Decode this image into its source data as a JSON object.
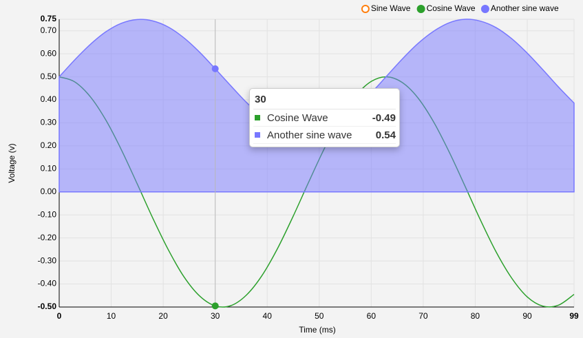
{
  "chart_data": {
    "type": "line",
    "xlabel": "Time (ms)",
    "ylabel": "Voltage (v)",
    "x": [
      0,
      3,
      6,
      9,
      12,
      15,
      18,
      21,
      24,
      27,
      30,
      33,
      36,
      39,
      42,
      45,
      48,
      51,
      54,
      57,
      60,
      63,
      66,
      69,
      72,
      75,
      78,
      81,
      84,
      87,
      90,
      93,
      96,
      99
    ],
    "series": [
      {
        "name": "Sine Wave",
        "color": "#ff7f0e",
        "disabled": true
      },
      {
        "name": "Cosine Wave",
        "color": "#2ca02c",
        "values": [
          0.5,
          0.478,
          0.413,
          0.311,
          0.181,
          0.035,
          -0.114,
          -0.252,
          -0.369,
          -0.452,
          -0.495,
          -0.494,
          -0.448,
          -0.363,
          -0.245,
          -0.105,
          0.044,
          0.189,
          0.317,
          0.417,
          0.48,
          0.5,
          0.475,
          0.408,
          0.304,
          0.173,
          0.027,
          -0.122,
          -0.26,
          -0.374,
          -0.456,
          -0.496,
          -0.492,
          -0.445
        ]
      },
      {
        "name": "Another sine wave",
        "color": "#7777ff",
        "area": true,
        "values": [
          0.5,
          0.574,
          0.641,
          0.696,
          0.733,
          0.749,
          0.743,
          0.716,
          0.669,
          0.607,
          0.535,
          0.461,
          0.389,
          0.328,
          0.282,
          0.256,
          0.251,
          0.269,
          0.307,
          0.362,
          0.43,
          0.504,
          0.578,
          0.645,
          0.698,
          0.735,
          0.75,
          0.742,
          0.714,
          0.666,
          0.603,
          0.531,
          0.456,
          0.386
        ]
      }
    ],
    "xlim": [
      0,
      99
    ],
    "xticks": [
      0,
      10,
      20,
      30,
      40,
      50,
      60,
      70,
      80,
      90,
      99
    ],
    "ylim": [
      -0.5,
      0.75
    ],
    "yticks": [
      {
        "value": -0.5,
        "label": "-0.50"
      },
      {
        "value": -0.4,
        "label": "-0.40"
      },
      {
        "value": -0.3,
        "label": "-0.30"
      },
      {
        "value": -0.2,
        "label": "-0.20"
      },
      {
        "value": -0.1,
        "label": "-0.10"
      },
      {
        "value": 0,
        "label": "0.00"
      },
      {
        "value": 0.1,
        "label": "0.10"
      },
      {
        "value": 0.2,
        "label": "0.20"
      },
      {
        "value": 0.3,
        "label": "0.30"
      },
      {
        "value": 0.4,
        "label": "0.40"
      },
      {
        "value": 0.5,
        "label": "0.50"
      },
      {
        "value": 0.6,
        "label": "0.60"
      },
      {
        "value": 0.7,
        "label": "0.70"
      },
      {
        "value": 0.75,
        "label": "0.75"
      }
    ],
    "grid": true,
    "legend": "top-right",
    "tooltip": {
      "x": 30,
      "values": [
        -0.49,
        0.54
      ]
    }
  }
}
